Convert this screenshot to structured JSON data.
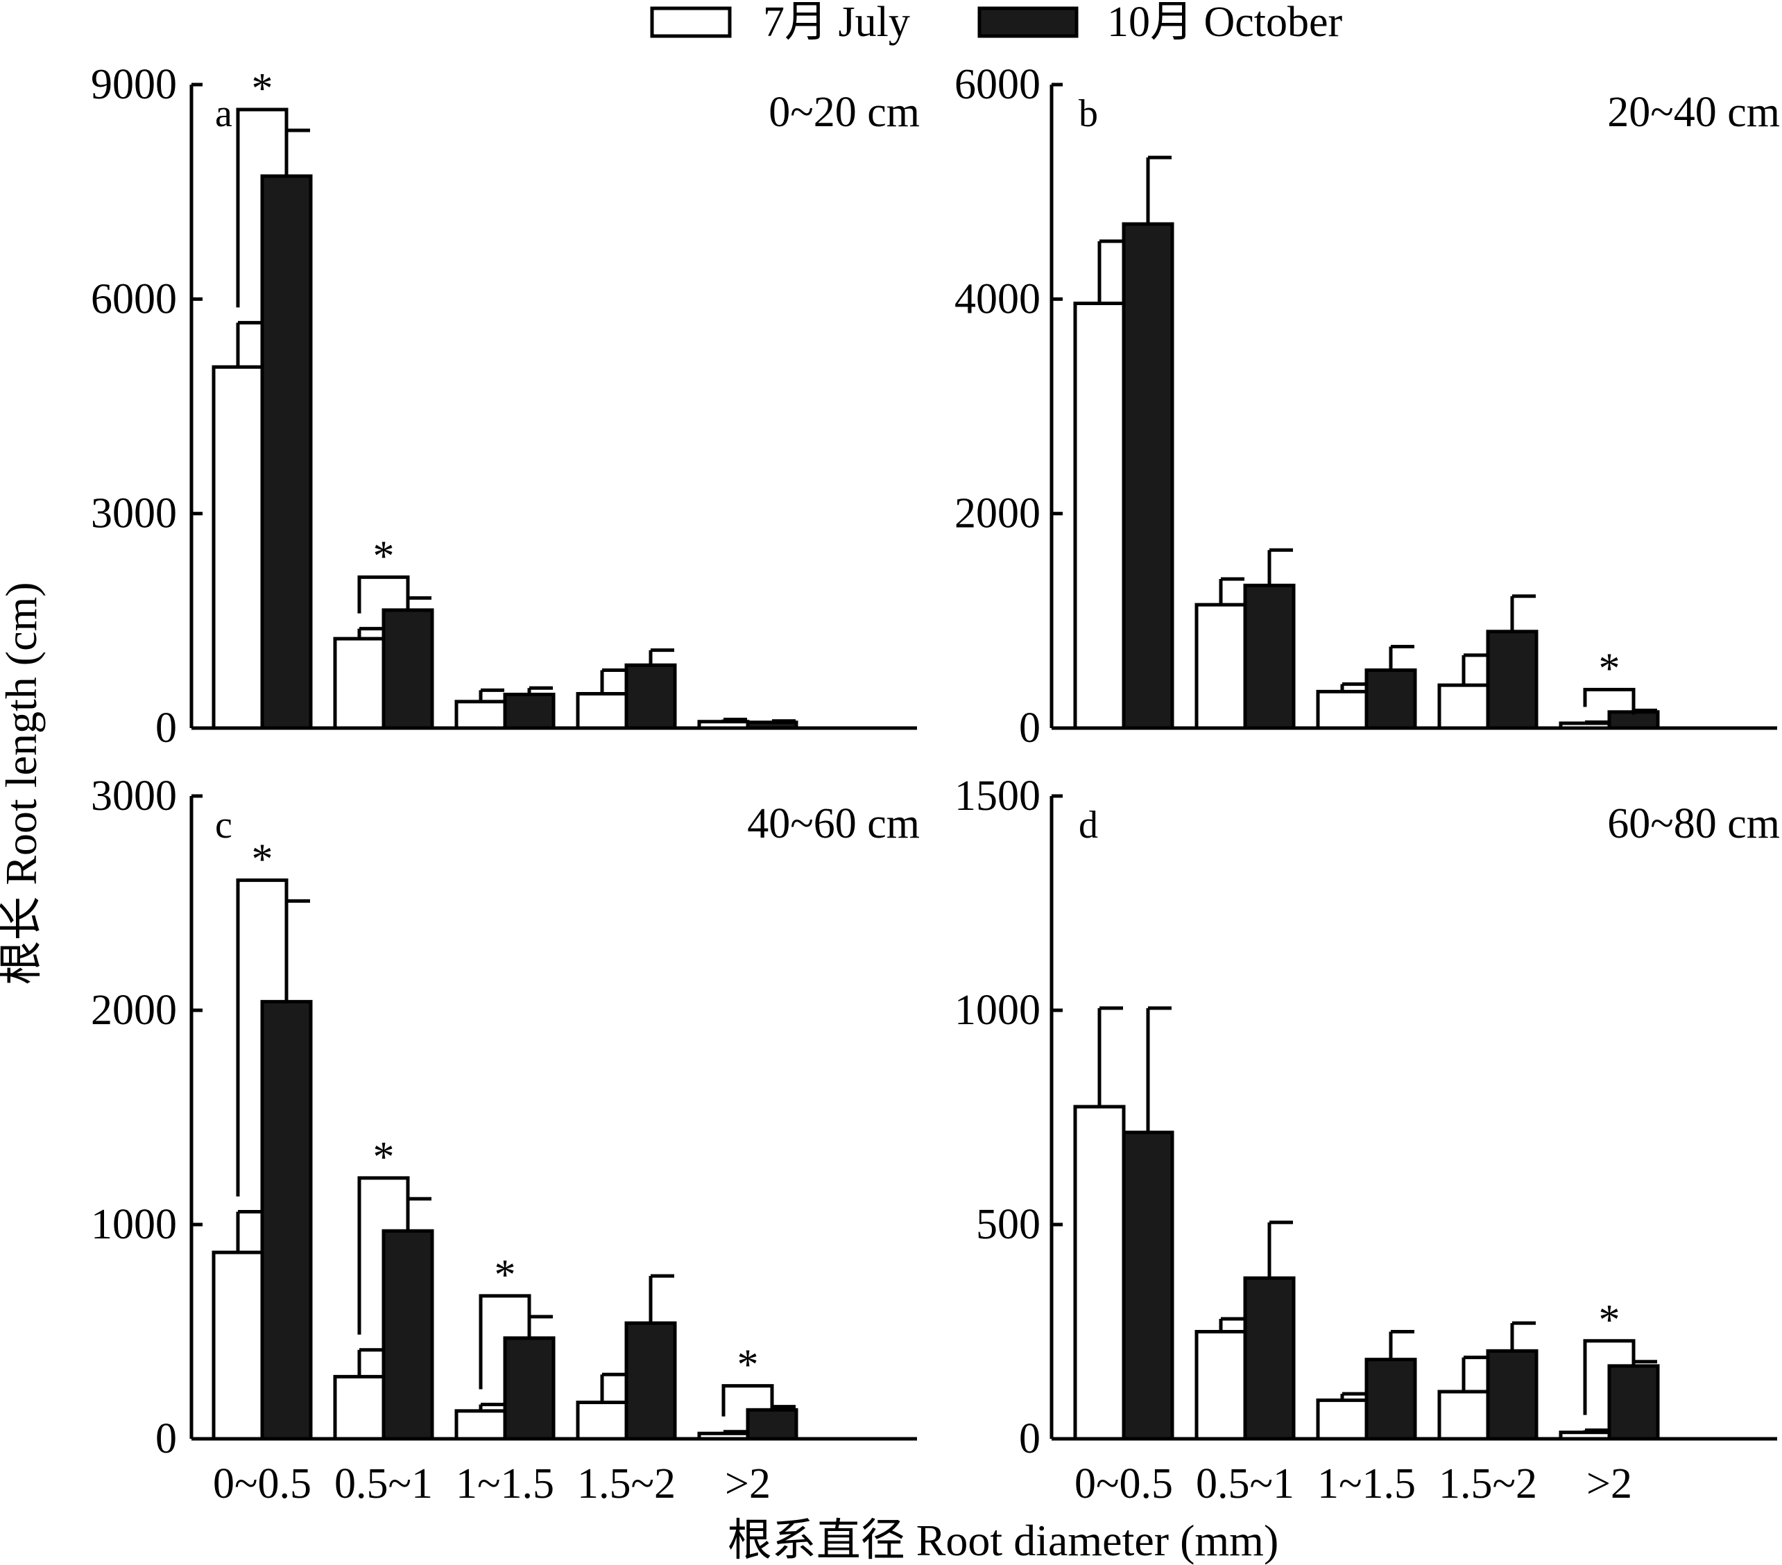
{
  "legend": [
    {
      "name": "7月 July",
      "fill": "#ffffff"
    },
    {
      "name": "10月 October",
      "fill": "#1a1a1a"
    }
  ],
  "y_axis_title": "根长 Root length (cm)",
  "x_axis_title": "根系直径 Root diameter (mm)",
  "chart_data": [
    {
      "type": "bar",
      "panel": "a",
      "depth": "0~20 cm",
      "categories": [
        "0~0.5",
        "0.5~1",
        "1~1.5",
        "1.5~2",
        ">2"
      ],
      "ylim": [
        0,
        9000
      ],
      "yticks": [
        "0",
        "3000",
        "6000",
        "9000"
      ],
      "series": [
        {
          "name": "7月 July",
          "values": [
            5050,
            1250,
            370,
            480,
            90
          ],
          "errors": [
            620,
            140,
            160,
            330,
            30
          ]
        },
        {
          "name": "10月 October",
          "values": [
            7720,
            1650,
            470,
            880,
            80
          ],
          "errors": [
            640,
            170,
            90,
            210,
            20
          ]
        }
      ],
      "significant": [
        "*",
        "*",
        "",
        "",
        ""
      ]
    },
    {
      "type": "bar",
      "panel": "b",
      "depth": "20~40 cm",
      "categories": [
        "0~0.5",
        "0.5~1",
        "1~1.5",
        "1.5~2",
        ">2"
      ],
      "ylim": [
        0,
        6000
      ],
      "yticks": [
        "0",
        "2000",
        "4000",
        "6000"
      ],
      "series": [
        {
          "name": "7月 July",
          "values": [
            3960,
            1150,
            340,
            400,
            45
          ],
          "errors": [
            580,
            240,
            70,
            280,
            10
          ]
        },
        {
          "name": "10月 October",
          "values": [
            4700,
            1330,
            540,
            900,
            150
          ],
          "errors": [
            620,
            330,
            220,
            330,
            15
          ]
        }
      ],
      "significant": [
        "",
        "",
        "",
        "",
        "*"
      ]
    },
    {
      "type": "bar",
      "panel": "c",
      "depth": "40~60 cm",
      "categories": [
        "0~0.5",
        "0.5~1",
        "1~1.5",
        "1.5~2",
        ">2"
      ],
      "ylim": [
        0,
        3000
      ],
      "yticks": [
        "0",
        "1000",
        "2000",
        "3000"
      ],
      "series": [
        {
          "name": "7月 July",
          "values": [
            870,
            290,
            130,
            170,
            25
          ],
          "errors": [
            190,
            125,
            30,
            130,
            8
          ]
        },
        {
          "name": "10月 October",
          "values": [
            2040,
            970,
            470,
            540,
            135
          ],
          "errors": [
            470,
            150,
            100,
            220,
            15
          ]
        }
      ],
      "significant": [
        "*",
        "*",
        "*",
        "",
        "*"
      ]
    },
    {
      "type": "bar",
      "panel": "d",
      "depth": "60~80 cm",
      "categories": [
        "0~0.5",
        "0.5~1",
        "1~1.5",
        "1.5~2",
        ">2"
      ],
      "ylim": [
        0,
        1500
      ],
      "yticks": [
        "0",
        "500",
        "1000",
        "1500"
      ],
      "series": [
        {
          "name": "7月 July",
          "values": [
            775,
            250,
            90,
            110,
            15
          ],
          "errors": [
            230,
            30,
            15,
            80,
            5
          ]
        },
        {
          "name": "10月 October",
          "values": [
            715,
            375,
            185,
            205,
            170
          ],
          "errors": [
            290,
            130,
            65,
            65,
            10
          ]
        }
      ],
      "significant": [
        "",
        "",
        "",
        "",
        "*"
      ]
    }
  ]
}
